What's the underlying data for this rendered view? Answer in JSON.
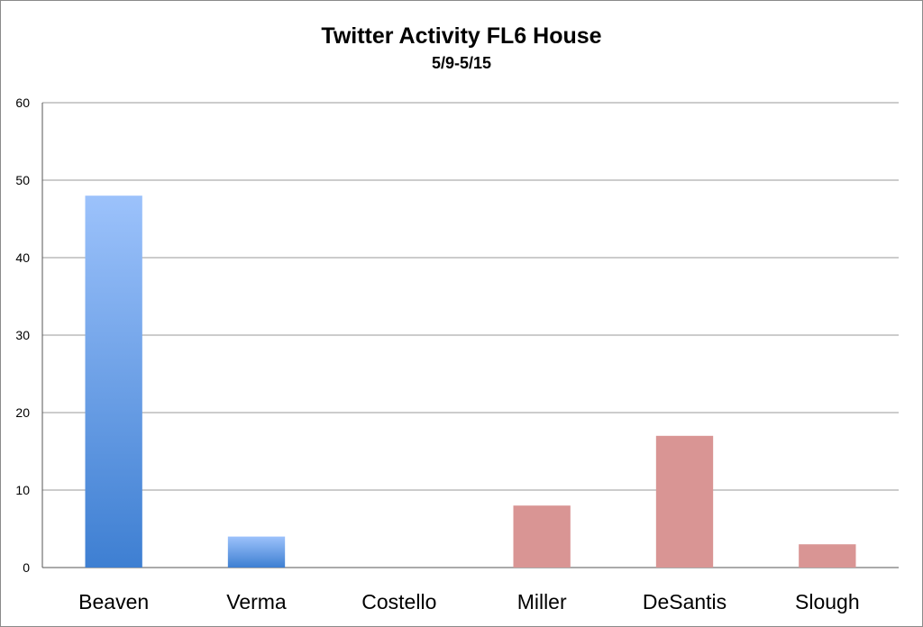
{
  "chart_data": {
    "type": "bar",
    "title": "Twitter Activity FL6 House",
    "subtitle": "5/9-5/15",
    "categories": [
      "Beaven",
      "Verma",
      "Costello",
      "Miller",
      "DeSantis",
      "Slough"
    ],
    "values": [
      48,
      4,
      0,
      8,
      17,
      3
    ],
    "bar_colors": [
      "blue",
      "blue",
      "blue",
      "red",
      "red",
      "red"
    ],
    "colors": {
      "blue_top": "#9cc2fb",
      "blue_bottom": "#3e7fd2",
      "red": "#d99594",
      "grid": "#9a9a9a",
      "axis": "#555555"
    },
    "ylim": [
      0,
      60
    ],
    "yticks": [
      0,
      10,
      20,
      30,
      40,
      50,
      60
    ],
    "grid": true,
    "legend": "none",
    "xlabel": "",
    "ylabel": ""
  }
}
